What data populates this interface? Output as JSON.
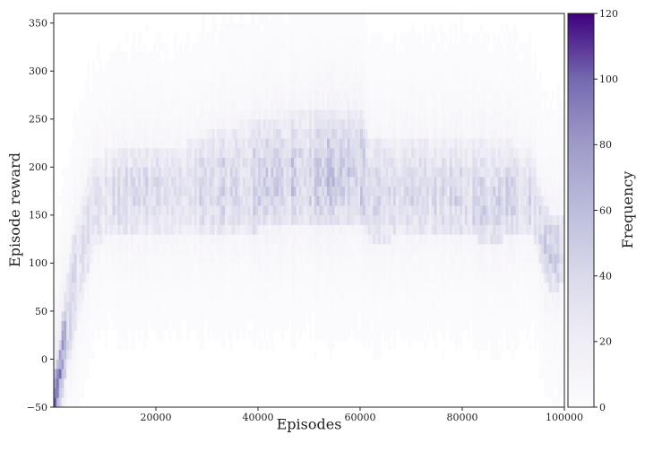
{
  "chart_data": {
    "type": "heatmap",
    "xlabel": "Episodes",
    "ylabel": "Episode reward",
    "xlim": [
      0,
      100000
    ],
    "ylim": [
      -50,
      360
    ],
    "xticks": [
      20000,
      40000,
      60000,
      80000,
      100000
    ],
    "yticks": [
      -50,
      0,
      50,
      100,
      150,
      200,
      250,
      300,
      350
    ],
    "colormap": "Purples",
    "colorbar": {
      "label": "Frequency",
      "min": 0,
      "max": 120,
      "ticks": [
        0,
        20,
        40,
        60,
        80,
        100,
        120
      ]
    },
    "density_profile": {
      "description_x_centers": [
        0,
        1000,
        2000,
        4000,
        8000,
        12000,
        20000,
        24000,
        30000,
        40000,
        50000,
        60000,
        62000,
        70000,
        80000,
        86000,
        90000,
        94000,
        96000,
        98000,
        100000
      ],
      "peak_reward": [
        -40,
        -20,
        10,
        80,
        160,
        170,
        175,
        175,
        180,
        185,
        190,
        195,
        170,
        175,
        170,
        160,
        170,
        165,
        120,
        110,
        115
      ],
      "peak_frequency": [
        120,
        90,
        45,
        25,
        22,
        25,
        27,
        24,
        27,
        30,
        33,
        35,
        28,
        27,
        27,
        30,
        28,
        26,
        30,
        35,
        32
      ],
      "band_low": [
        -50,
        -50,
        -30,
        20,
        120,
        130,
        130,
        130,
        130,
        135,
        140,
        145,
        120,
        130,
        130,
        120,
        130,
        130,
        80,
        70,
        80
      ],
      "band_high": [
        -20,
        10,
        60,
        140,
        210,
        220,
        220,
        220,
        235,
        250,
        260,
        265,
        225,
        230,
        230,
        225,
        225,
        215,
        160,
        150,
        155
      ]
    },
    "colors": {
      "low": "#fcfbfd",
      "mid": "#9e9ac8",
      "high": "#3f007d"
    }
  }
}
